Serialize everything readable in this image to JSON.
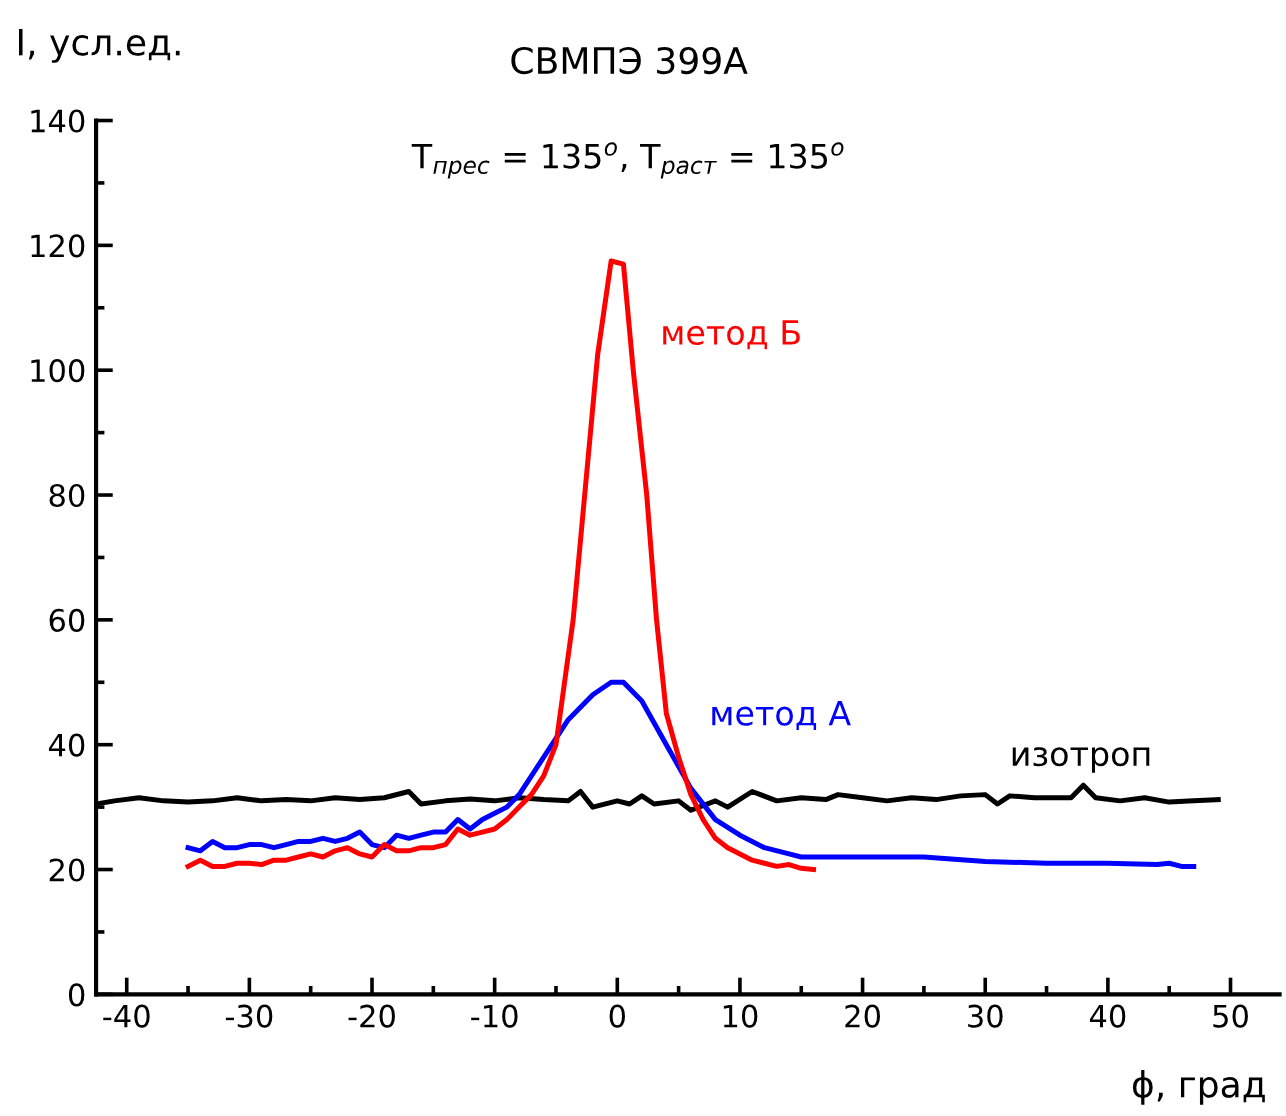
{
  "chart_data": {
    "type": "line",
    "title": "СВМПЭ 399А",
    "subtitle": "T$_{прес}$ = 135$^{о}$, T$_{раст}$ = 135$^{о}$",
    "xlabel": "ϕ, град",
    "ylabel": "I, усл.ед.",
    "xlim": [
      -42.5,
      54
    ],
    "ylim": [
      0,
      140
    ],
    "xticks": [
      -40,
      {
        "value": -35,
        "label": null
      },
      -30,
      {
        "value": -25,
        "label": null
      },
      -20,
      {
        "value": -15,
        "label": null
      },
      -10,
      {
        "value": -5,
        "label": null
      },
      0,
      {
        "value": 5,
        "label": null
      },
      10,
      {
        "value": 15,
        "label": null
      },
      20,
      {
        "value": 25,
        "label": null
      },
      30,
      {
        "value": 35,
        "label": null
      },
      40,
      {
        "value": 45,
        "label": null
      },
      50
    ],
    "yticks": [
      0,
      {
        "value": 10,
        "label": null
      },
      20,
      {
        "value": 30,
        "label": null
      },
      40,
      {
        "value": 50,
        "label": null
      },
      60,
      {
        "value": 70,
        "label": null
      },
      80,
      {
        "value": 90,
        "label": null
      },
      100,
      {
        "value": 110,
        "label": null
      },
      120,
      {
        "value": 130,
        "label": null
      },
      140
    ],
    "grid": false,
    "legend": false,
    "marker": "none",
    "line_style": "solid",
    "series": [
      {
        "name": "изотроп",
        "color": "#000000",
        "x": [
          -42.5,
          -41,
          -39,
          -37,
          -35,
          -33,
          -31,
          -29,
          -27,
          -25,
          -23,
          -21,
          -19,
          -17,
          -16,
          -14,
          -12,
          -10,
          -8,
          -6,
          -4,
          -3,
          -2,
          0,
          1,
          2,
          3,
          5,
          6,
          8,
          9,
          11,
          13,
          15,
          17,
          18,
          20,
          22,
          24,
          26,
          28,
          30,
          31,
          32,
          34,
          37,
          38,
          39,
          41,
          43,
          45,
          47,
          49
        ],
        "values": [
          30.5,
          31,
          31.5,
          31,
          30.8,
          31,
          31.5,
          31,
          31.2,
          31,
          31.5,
          31.2,
          31.5,
          32.5,
          30.5,
          31,
          31.3,
          31,
          31.5,
          31.2,
          31,
          32.5,
          30,
          31,
          30.5,
          31.8,
          30.5,
          31,
          29.5,
          31,
          30,
          32.5,
          31,
          31.5,
          31.2,
          32,
          31.5,
          31,
          31.5,
          31.2,
          31.8,
          32,
          30.5,
          31.8,
          31.5,
          31.5,
          33.5,
          31.5,
          31,
          31.5,
          30.8,
          31,
          31.2
        ]
      },
      {
        "name": "метод А",
        "color": "#0000ff",
        "x": [
          -35,
          -34,
          -33,
          -32,
          -31,
          -30,
          -29,
          -28,
          -27,
          -26,
          -25,
          -24,
          -23,
          -22,
          -21,
          -20,
          -19,
          -18,
          -17,
          -16,
          -15,
          -14,
          -13,
          -12,
          -11,
          -10,
          -9,
          -8,
          -6,
          -4,
          -2,
          -0.5,
          0.5,
          2,
          4,
          6,
          8,
          10,
          12,
          14,
          15,
          20,
          25,
          30,
          35,
          40,
          44,
          45,
          46,
          47
        ],
        "values": [
          23.5,
          23,
          24.5,
          23.5,
          23.5,
          24,
          24,
          23.5,
          24,
          24.5,
          24.5,
          25,
          24.5,
          25,
          26,
          24,
          23.5,
          25.5,
          25,
          25.5,
          26,
          26,
          28,
          26.5,
          28,
          29,
          30,
          32,
          38,
          44,
          48,
          50,
          50,
          47,
          40,
          33,
          28,
          25.5,
          23.5,
          22.5,
          22,
          22,
          22,
          21.3,
          21,
          21,
          20.8,
          21,
          20.5,
          20.5
        ]
      },
      {
        "name": "метод Б",
        "color": "#ff0000",
        "x": [
          -35,
          -34,
          -33,
          -32,
          -31,
          -30,
          -29,
          -28,
          -27,
          -26,
          -25,
          -24,
          -23,
          -22,
          -21,
          -20,
          -19,
          -18,
          -17,
          -16,
          -15,
          -14,
          -13,
          -12,
          -11,
          -10,
          -9,
          -8,
          -7,
          -6,
          -5,
          -4.3,
          -3.6,
          -1.6,
          -0.5,
          0.5,
          1.3,
          2.4,
          3.2,
          4,
          5,
          6,
          7,
          8,
          9,
          10,
          11,
          12,
          13,
          14,
          15,
          16
        ],
        "values": [
          20.5,
          21.5,
          20.5,
          20.5,
          21,
          21,
          20.8,
          21.5,
          21.5,
          22,
          22.5,
          22,
          23,
          23.5,
          22.5,
          22,
          24,
          23,
          23,
          23.5,
          23.5,
          24,
          26.5,
          25.5,
          26,
          26.5,
          28,
          30,
          32,
          35,
          40,
          50,
          60,
          102.5,
          117.5,
          117,
          100,
          80,
          60,
          45,
          38,
          32,
          28,
          25,
          23.5,
          22.5,
          21.5,
          21,
          20.5,
          20.8,
          20.2,
          20
        ]
      }
    ]
  }
}
